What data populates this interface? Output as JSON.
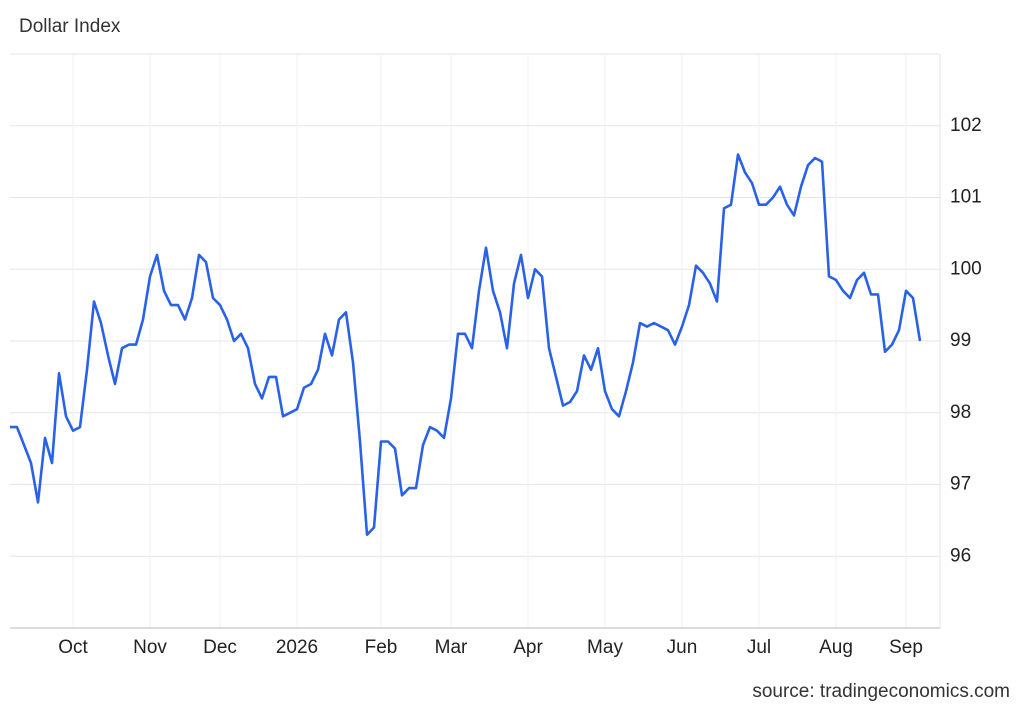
{
  "chart_data": {
    "type": "line",
    "title": "Dollar Index",
    "source": "source: tradingeconomics.com",
    "categories": [
      null,
      null,
      null,
      null,
      null,
      null,
      null,
      null,
      null,
      "Oct",
      null,
      null,
      null,
      null,
      null,
      null,
      null,
      null,
      null,
      null,
      "Nov",
      null,
      null,
      null,
      null,
      null,
      null,
      null,
      null,
      null,
      "Dec",
      null,
      null,
      null,
      null,
      null,
      null,
      null,
      null,
      null,
      null,
      "2026",
      null,
      null,
      null,
      null,
      null,
      null,
      null,
      null,
      null,
      null,
      null,
      "Feb",
      null,
      null,
      null,
      null,
      null,
      null,
      null,
      null,
      null,
      "Mar",
      null,
      null,
      null,
      null,
      null,
      null,
      null,
      null,
      null,
      null,
      "Apr",
      null,
      null,
      null,
      null,
      null,
      null,
      null,
      null,
      null,
      null,
      "May",
      null,
      null,
      null,
      null,
      null,
      null,
      null,
      null,
      null,
      null,
      "Jun",
      null,
      null,
      null,
      null,
      null,
      null,
      null,
      null,
      null,
      null,
      "Jul",
      null,
      null,
      null,
      null,
      null,
      null,
      null,
      null,
      null,
      null,
      "Aug",
      null,
      null,
      null,
      null,
      null,
      null,
      null,
      null,
      null,
      "Sep",
      null,
      null
    ],
    "series": [
      {
        "name": "Dollar Index",
        "color": "#2962e8",
        "values": [
          97.8,
          97.8,
          97.55,
          97.3,
          96.75,
          97.65,
          97.3,
          98.55,
          97.95,
          97.75,
          97.8,
          98.6,
          99.55,
          99.25,
          98.8,
          98.4,
          98.9,
          98.95,
          98.95,
          99.3,
          99.9,
          100.2,
          99.7,
          99.5,
          99.5,
          99.3,
          99.6,
          100.2,
          100.1,
          99.6,
          99.5,
          99.3,
          99.0,
          99.1,
          98.9,
          98.4,
          98.2,
          98.5,
          98.5,
          97.95,
          98.0,
          98.05,
          98.35,
          98.4,
          98.6,
          99.1,
          98.8,
          99.3,
          99.4,
          98.7,
          97.6,
          96.3,
          96.4,
          97.6,
          97.6,
          97.5,
          96.85,
          96.95,
          96.95,
          97.55,
          97.8,
          97.75,
          97.65,
          98.2,
          99.1,
          99.1,
          98.9,
          99.7,
          100.3,
          99.7,
          99.4,
          98.9,
          99.8,
          100.2,
          99.6,
          100.0,
          99.9,
          98.9,
          98.5,
          98.1,
          98.15,
          98.3,
          98.8,
          98.6,
          98.9,
          98.3,
          98.05,
          97.95,
          98.3,
          98.7,
          99.25,
          99.2,
          99.25,
          99.2,
          99.15,
          98.95,
          99.2,
          99.5,
          100.05,
          99.95,
          99.8,
          99.55,
          100.85,
          100.9,
          101.6,
          101.35,
          101.2,
          100.9,
          100.9,
          101.0,
          101.15,
          100.9,
          100.75,
          101.15,
          101.45,
          101.55,
          101.5,
          99.9,
          99.85,
          99.7,
          99.6,
          99.85,
          99.95,
          99.65,
          99.65,
          98.85,
          98.95,
          99.15,
          99.7,
          99.6,
          99.0
        ]
      }
    ],
    "ylim": [
      95,
      103
    ],
    "yticks": [
      96,
      97,
      98,
      99,
      100,
      101,
      102
    ],
    "grid": true
  }
}
